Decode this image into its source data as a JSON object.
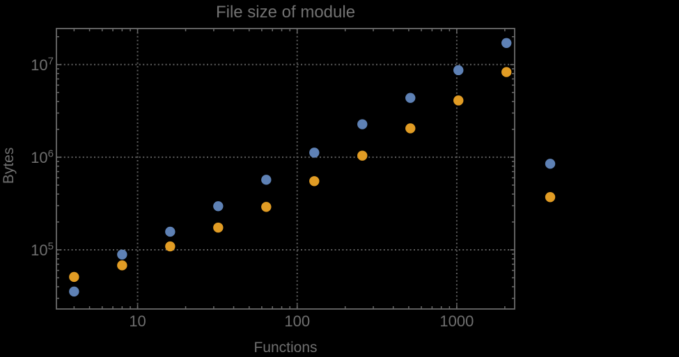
{
  "page": {
    "background": "#000000"
  },
  "chart_data": {
    "type": "scatter",
    "title": "File size of module",
    "xlabel": "Functions",
    "ylabel": "Bytes",
    "xscale": "log",
    "yscale": "log",
    "xlim": [
      3.1,
      2305
    ],
    "ylim": [
      23000,
      24500000
    ],
    "x_major_ticks": [
      10,
      100,
      1000
    ],
    "x_tick_labels": [
      "10",
      "100",
      "1000"
    ],
    "y_major_ticks": [
      100000,
      1000000,
      10000000
    ],
    "y_tick_labels": [
      "10^5",
      "10^6",
      "10^7"
    ],
    "grid": {
      "show": true,
      "style": "dotted",
      "on": "major-only",
      "color": "#5f5f5f"
    },
    "frame": {
      "show": true,
      "mirrored_ticks": true,
      "color": "#6b6b6b"
    },
    "legend": null,
    "text_color": "#6f6f6f",
    "marker": "circle",
    "marker_radius_px": 7.2,
    "series": [
      {
        "name": "blue",
        "color": "#5e81b5",
        "points": [
          [
            4,
            35500
          ],
          [
            8,
            89000
          ],
          [
            16,
            157000
          ],
          [
            32,
            296000
          ],
          [
            64,
            571000
          ],
          [
            128,
            1120000
          ],
          [
            256,
            2270000
          ],
          [
            512,
            4370000
          ],
          [
            1024,
            8700000
          ],
          [
            2048,
            17100000
          ],
          [
            3850,
            850000
          ]
        ]
      },
      {
        "name": "orange",
        "color": "#e19c24",
        "points": [
          [
            4,
            51000
          ],
          [
            8,
            68000
          ],
          [
            16,
            109000
          ],
          [
            32,
            174000
          ],
          [
            64,
            291000
          ],
          [
            128,
            552000
          ],
          [
            256,
            1040000
          ],
          [
            512,
            2050000
          ],
          [
            1024,
            4100000
          ],
          [
            2048,
            8300000
          ],
          [
            3850,
            371000
          ]
        ]
      }
    ]
  }
}
